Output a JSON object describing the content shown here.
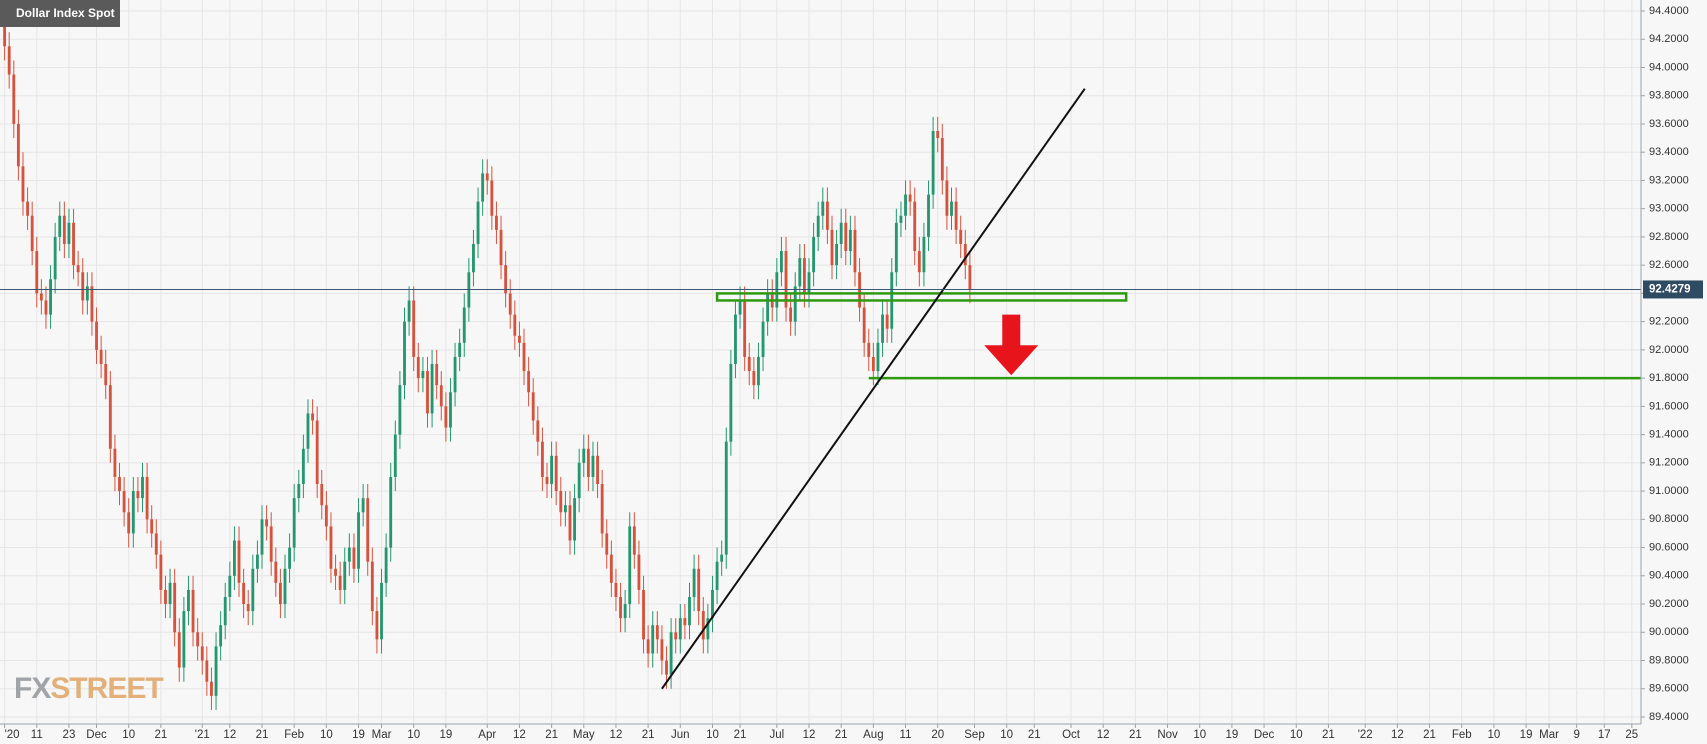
{
  "chart_data": {
    "type": "candlestick",
    "title": "Dollar Index Spot",
    "watermark": [
      "FX",
      "STREET"
    ],
    "up_color": "#26966f",
    "down_color": "#d5533e",
    "grid": true,
    "xlim": [
      -1,
      356
    ],
    "ylim": [
      89.4,
      94.4
    ],
    "yticks": [
      {
        "value": 89.4,
        "label": "89.4000"
      },
      {
        "value": 89.6,
        "label": "89.6000"
      },
      {
        "value": 89.8,
        "label": "89.8000"
      },
      {
        "value": 90.0,
        "label": "90.0000"
      },
      {
        "value": 90.2,
        "label": "90.2000"
      },
      {
        "value": 90.4,
        "label": "90.4000"
      },
      {
        "value": 90.6,
        "label": "90.6000"
      },
      {
        "value": 90.8,
        "label": "90.8000"
      },
      {
        "value": 91.0,
        "label": "91.0000"
      },
      {
        "value": 91.2,
        "label": "91.2000"
      },
      {
        "value": 91.4,
        "label": "91.4000"
      },
      {
        "value": 91.6,
        "label": "91.6000"
      },
      {
        "value": 91.8,
        "label": "91.8000"
      },
      {
        "value": 92.0,
        "label": "92.0000"
      },
      {
        "value": 92.2,
        "label": "92.2000"
      },
      {
        "value": 92.4,
        "label": "92.4000"
      },
      {
        "value": 92.6,
        "label": "92.6000"
      },
      {
        "value": 92.8,
        "label": "92.8000"
      },
      {
        "value": 93.0,
        "label": "93.0000"
      },
      {
        "value": 93.2,
        "label": "93.2000"
      },
      {
        "value": 93.4,
        "label": "93.4000"
      },
      {
        "value": 93.6,
        "label": "93.6000"
      },
      {
        "value": 93.8,
        "label": "93.8000"
      },
      {
        "value": 94.0,
        "label": "94.0000"
      },
      {
        "value": 94.2,
        "label": "94.2000"
      },
      {
        "value": 94.4,
        "label": "94.4000"
      }
    ],
    "xticks": [
      {
        "value": 0,
        "label": "'20"
      },
      {
        "value": 7,
        "label": "11"
      },
      {
        "value": 14,
        "label": "23"
      },
      {
        "value": 20,
        "label": "Dec"
      },
      {
        "value": 27,
        "label": "10"
      },
      {
        "value": 34,
        "label": "21"
      },
      {
        "value": 43,
        "label": "'21"
      },
      {
        "value": 49,
        "label": "12"
      },
      {
        "value": 56,
        "label": "21"
      },
      {
        "value": 63,
        "label": "Feb"
      },
      {
        "value": 70,
        "label": "10"
      },
      {
        "value": 77,
        "label": "19"
      },
      {
        "value": 82,
        "label": "Mar"
      },
      {
        "value": 89,
        "label": "10"
      },
      {
        "value": 96,
        "label": "19"
      },
      {
        "value": 105,
        "label": "Apr"
      },
      {
        "value": 112,
        "label": "12"
      },
      {
        "value": 119,
        "label": "21"
      },
      {
        "value": 126,
        "label": "May"
      },
      {
        "value": 133,
        "label": "12"
      },
      {
        "value": 140,
        "label": "21"
      },
      {
        "value": 147,
        "label": "Jun"
      },
      {
        "value": 154,
        "label": "10"
      },
      {
        "value": 160,
        "label": "21"
      },
      {
        "value": 168,
        "label": "Jul"
      },
      {
        "value": 175,
        "label": "12"
      },
      {
        "value": 182,
        "label": "21"
      },
      {
        "value": 189,
        "label": "Aug"
      },
      {
        "value": 196,
        "label": "11"
      },
      {
        "value": 203,
        "label": "20"
      },
      {
        "value": 211,
        "label": "Sep"
      },
      {
        "value": 218,
        "label": "10"
      },
      {
        "value": 224,
        "label": "21"
      },
      {
        "value": 232,
        "label": "Oct"
      },
      {
        "value": 239,
        "label": "12"
      },
      {
        "value": 246,
        "label": "21"
      },
      {
        "value": 253,
        "label": "Nov"
      },
      {
        "value": 260,
        "label": "10"
      },
      {
        "value": 267,
        "label": "19"
      },
      {
        "value": 274,
        "label": "Dec"
      },
      {
        "value": 281,
        "label": "10"
      },
      {
        "value": 288,
        "label": "21"
      },
      {
        "value": 296,
        "label": "'22"
      },
      {
        "value": 303,
        "label": "12"
      },
      {
        "value": 310,
        "label": "21"
      },
      {
        "value": 317,
        "label": "Feb"
      },
      {
        "value": 324,
        "label": "10"
      },
      {
        "value": 331,
        "label": "19"
      },
      {
        "value": 336,
        "label": "Mar"
      },
      {
        "value": 342,
        "label": "9"
      },
      {
        "value": 348,
        "label": "17"
      },
      {
        "value": 354,
        "label": "25"
      }
    ],
    "x": [
      0,
      1,
      2,
      3,
      4,
      5,
      6,
      7,
      8,
      9,
      10,
      11,
      12,
      13,
      14,
      15,
      16,
      17,
      18,
      19,
      20,
      21,
      22,
      23,
      24,
      25,
      26,
      27,
      28,
      29,
      30,
      31,
      32,
      33,
      34,
      35,
      36,
      37,
      38,
      39,
      40,
      41,
      42,
      43,
      44,
      45,
      46,
      47,
      48,
      49,
      50,
      51,
      52,
      53,
      54,
      55,
      56,
      57,
      58,
      59,
      60,
      61,
      62,
      63,
      64,
      65,
      66,
      67,
      68,
      69,
      70,
      71,
      72,
      73,
      74,
      75,
      76,
      77,
      78,
      79,
      80,
      81,
      82,
      83,
      84,
      85,
      86,
      87,
      88,
      89,
      90,
      91,
      92,
      93,
      94,
      95,
      96,
      97,
      98,
      99,
      100,
      101,
      102,
      103,
      104,
      105,
      106,
      107,
      108,
      109,
      110,
      111,
      112,
      113,
      114,
      115,
      116,
      117,
      118,
      119,
      120,
      121,
      122,
      123,
      124,
      125,
      126,
      127,
      128,
      129,
      130,
      131,
      132,
      133,
      134,
      135,
      136,
      137,
      138,
      139,
      140,
      141,
      142,
      143,
      144,
      145,
      146,
      147,
      148,
      149,
      150,
      151,
      152,
      153,
      154,
      155,
      156,
      157,
      158,
      159,
      160,
      161,
      162,
      163,
      164,
      165,
      166,
      167,
      168,
      169,
      170,
      171,
      172,
      173,
      174,
      175,
      176,
      177,
      178,
      179,
      180,
      181,
      182,
      183,
      184,
      185,
      186,
      187,
      188,
      189,
      190,
      191,
      192,
      193,
      194,
      195,
      196,
      197,
      198,
      199,
      200,
      201,
      202,
      203,
      204,
      205,
      206,
      207,
      208,
      209,
      210
    ],
    "open": [
      94.3,
      94.15,
      93.95,
      93.6,
      93.3,
      93.05,
      92.95,
      92.7,
      92.4,
      92.35,
      92.25,
      92.5,
      92.8,
      92.95,
      92.75,
      92.9,
      92.6,
      92.55,
      92.35,
      92.45,
      92.2,
      92.0,
      91.9,
      91.75,
      91.3,
      91.1,
      91.0,
      90.85,
      90.7,
      91.0,
      90.95,
      91.1,
      90.8,
      90.7,
      90.55,
      90.3,
      90.2,
      90.35,
      90.0,
      89.75,
      90.15,
      90.3,
      90.0,
      89.9,
      89.8,
      89.65,
      89.55,
      89.9,
      90.05,
      90.25,
      90.4,
      90.65,
      90.35,
      90.2,
      90.15,
      90.45,
      90.55,
      90.8,
      90.75,
      90.5,
      90.35,
      90.2,
      90.45,
      90.6,
      90.95,
      91.05,
      91.3,
      91.55,
      91.5,
      91.05,
      90.9,
      90.75,
      90.45,
      90.4,
      90.3,
      90.5,
      90.6,
      90.45,
      90.85,
      90.95,
      90.5,
      90.15,
      89.95,
      90.35,
      90.6,
      91.1,
      91.4,
      91.75,
      92.2,
      92.35,
      91.95,
      91.8,
      91.85,
      91.55,
      91.9,
      91.75,
      91.6,
      91.45,
      91.7,
      91.95,
      92.05,
      92.3,
      92.55,
      92.75,
      93.05,
      93.25,
      93.2,
      92.95,
      92.85,
      92.6,
      92.4,
      92.25,
      92.1,
      92.05,
      91.85,
      91.7,
      91.5,
      91.35,
      91.1,
      91.05,
      91.25,
      91.0,
      90.85,
      90.9,
      90.65,
      90.95,
      91.2,
      91.3,
      91.1,
      91.25,
      91.05,
      90.7,
      90.55,
      90.35,
      90.25,
      90.1,
      90.2,
      90.75,
      90.55,
      90.3,
      89.95,
      89.85,
      90.05,
      89.95,
      89.8,
      89.7,
      90.0,
      89.95,
      90.1,
      90.05,
      90.25,
      90.45,
      90.15,
      89.95,
      90.1,
      90.3,
      90.5,
      90.55,
      91.35,
      91.9,
      92.25,
      92.35,
      91.95,
      91.85,
      91.75,
      91.95,
      92.2,
      92.4,
      92.3,
      92.55,
      92.7,
      92.3,
      92.2,
      92.45,
      92.65,
      92.4,
      92.55,
      92.8,
      92.95,
      93.05,
      92.85,
      92.6,
      92.75,
      92.9,
      92.7,
      92.85,
      92.55,
      92.3,
      92.05,
      91.95,
      91.85,
      92.05,
      92.25,
      92.15,
      92.55,
      92.9,
      92.95,
      93.1,
      93.05,
      92.7,
      92.55,
      92.8,
      93.1,
      93.55,
      93.5,
      93.2,
      92.95,
      93.05,
      92.85,
      92.75,
      92.6
    ],
    "high": [
      94.4,
      94.25,
      94.05,
      93.7,
      93.4,
      93.15,
      93.05,
      92.8,
      92.5,
      92.45,
      92.6,
      92.9,
      93.05,
      93.05,
      93.0,
      93.0,
      92.7,
      92.65,
      92.55,
      92.55,
      92.3,
      92.1,
      92.0,
      91.85,
      91.4,
      91.2,
      91.1,
      90.95,
      91.1,
      91.1,
      91.2,
      91.2,
      90.9,
      90.8,
      90.65,
      90.4,
      90.45,
      90.45,
      90.1,
      90.25,
      90.4,
      90.4,
      90.1,
      90.0,
      89.9,
      89.75,
      90.0,
      90.15,
      90.35,
      90.5,
      90.75,
      90.75,
      90.45,
      90.3,
      90.55,
      90.65,
      90.9,
      90.9,
      90.85,
      90.6,
      90.45,
      90.55,
      90.7,
      91.05,
      91.15,
      91.4,
      91.65,
      91.65,
      91.6,
      91.15,
      91.0,
      90.85,
      90.55,
      90.5,
      90.6,
      90.7,
      90.7,
      90.95,
      91.05,
      91.05,
      90.6,
      90.25,
      90.45,
      90.7,
      91.2,
      91.5,
      91.85,
      92.3,
      92.45,
      92.45,
      92.05,
      91.95,
      91.95,
      92.0,
      92.0,
      91.85,
      91.7,
      91.8,
      92.05,
      92.15,
      92.4,
      92.65,
      92.85,
      93.15,
      93.35,
      93.35,
      93.3,
      93.05,
      92.95,
      92.7,
      92.5,
      92.35,
      92.2,
      92.15,
      91.95,
      91.8,
      91.6,
      91.45,
      91.2,
      91.35,
      91.35,
      91.1,
      91.0,
      91.0,
      91.05,
      91.3,
      91.4,
      91.4,
      91.35,
      91.35,
      91.15,
      90.8,
      90.65,
      90.45,
      90.35,
      90.3,
      90.85,
      90.85,
      90.65,
      90.4,
      90.05,
      90.15,
      90.15,
      90.05,
      89.9,
      90.1,
      90.1,
      90.2,
      90.2,
      90.35,
      90.55,
      90.55,
      90.25,
      90.2,
      90.4,
      90.6,
      90.65,
      91.45,
      92.0,
      92.35,
      92.45,
      92.45,
      92.05,
      91.95,
      92.05,
      92.3,
      92.5,
      92.5,
      92.65,
      92.8,
      92.8,
      92.4,
      92.55,
      92.75,
      92.75,
      92.65,
      92.9,
      93.05,
      93.15,
      93.15,
      92.95,
      92.85,
      93.0,
      93.0,
      92.95,
      92.95,
      92.65,
      92.4,
      92.15,
      92.05,
      92.15,
      92.35,
      92.35,
      92.65,
      93.0,
      93.05,
      93.2,
      93.2,
      93.15,
      92.8,
      92.9,
      93.2,
      93.65,
      93.65,
      93.6,
      93.3,
      93.15,
      93.15,
      92.95,
      92.85,
      92.7
    ],
    "low": [
      94.05,
      93.85,
      93.5,
      93.2,
      92.95,
      92.85,
      92.6,
      92.3,
      92.25,
      92.15,
      92.15,
      92.4,
      92.7,
      92.65,
      92.65,
      92.5,
      92.45,
      92.25,
      92.25,
      92.1,
      91.9,
      91.8,
      91.65,
      91.2,
      91.0,
      90.9,
      90.75,
      90.6,
      90.6,
      90.85,
      90.85,
      90.7,
      90.6,
      90.45,
      90.2,
      90.1,
      90.1,
      89.9,
      89.65,
      89.65,
      90.05,
      89.9,
      89.8,
      89.7,
      89.55,
      89.45,
      89.45,
      89.8,
      89.95,
      90.15,
      90.3,
      90.25,
      90.1,
      90.05,
      90.05,
      90.35,
      90.45,
      90.65,
      90.4,
      90.25,
      90.1,
      90.1,
      90.35,
      90.5,
      90.85,
      90.95,
      91.2,
      91.4,
      90.95,
      90.8,
      90.65,
      90.35,
      90.3,
      90.2,
      90.2,
      90.4,
      90.35,
      90.35,
      90.75,
      90.4,
      90.05,
      89.85,
      89.85,
      90.25,
      90.5,
      91.0,
      91.3,
      91.65,
      92.1,
      91.85,
      91.7,
      91.7,
      91.45,
      91.45,
      91.65,
      91.5,
      91.35,
      91.35,
      91.6,
      91.85,
      91.95,
      92.2,
      92.45,
      92.65,
      92.95,
      93.1,
      92.85,
      92.75,
      92.5,
      92.3,
      92.15,
      92.0,
      91.95,
      91.75,
      91.6,
      91.4,
      91.25,
      91.0,
      90.95,
      90.95,
      90.9,
      90.75,
      90.75,
      90.55,
      90.55,
      90.85,
      91.1,
      91.0,
      91.0,
      90.95,
      90.6,
      90.45,
      90.25,
      90.15,
      90.0,
      90.0,
      90.1,
      90.45,
      90.2,
      89.85,
      89.75,
      89.75,
      89.85,
      89.7,
      89.6,
      89.6,
      89.85,
      89.85,
      89.95,
      89.95,
      90.15,
      90.05,
      89.85,
      89.85,
      90.0,
      90.2,
      90.4,
      90.45,
      91.25,
      91.8,
      92.15,
      91.85,
      91.75,
      91.65,
      91.65,
      91.85,
      92.1,
      92.2,
      92.2,
      92.45,
      92.2,
      92.1,
      92.1,
      92.35,
      92.3,
      92.3,
      92.45,
      92.7,
      92.85,
      92.75,
      92.5,
      92.5,
      92.65,
      92.6,
      92.6,
      92.45,
      92.2,
      91.95,
      91.85,
      91.75,
      91.75,
      91.95,
      92.05,
      92.05,
      92.45,
      92.8,
      92.85,
      92.95,
      92.6,
      92.45,
      92.45,
      92.7,
      93.0,
      93.4,
      93.1,
      92.85,
      92.85,
      92.75,
      92.65,
      92.5,
      92.33
    ],
    "close": [
      94.15,
      93.95,
      93.6,
      93.3,
      93.05,
      92.95,
      92.7,
      92.4,
      92.35,
      92.25,
      92.5,
      92.8,
      92.95,
      92.75,
      92.9,
      92.6,
      92.55,
      92.35,
      92.45,
      92.2,
      92.0,
      91.9,
      91.75,
      91.3,
      91.1,
      91.0,
      90.85,
      90.7,
      91.0,
      90.95,
      91.1,
      90.8,
      90.7,
      90.55,
      90.3,
      90.2,
      90.35,
      90.0,
      89.75,
      90.15,
      90.3,
      90.0,
      89.9,
      89.8,
      89.65,
      89.55,
      89.9,
      90.05,
      90.25,
      90.4,
      90.65,
      90.35,
      90.2,
      90.15,
      90.45,
      90.55,
      90.8,
      90.75,
      90.5,
      90.35,
      90.2,
      90.45,
      90.6,
      90.95,
      91.05,
      91.3,
      91.55,
      91.5,
      91.05,
      90.9,
      90.75,
      90.45,
      90.4,
      90.3,
      90.5,
      90.6,
      90.45,
      90.85,
      90.95,
      90.5,
      90.15,
      89.95,
      90.35,
      90.6,
      91.1,
      91.4,
      91.75,
      92.2,
      92.35,
      91.95,
      91.8,
      91.85,
      91.55,
      91.9,
      91.75,
      91.6,
      91.45,
      91.7,
      91.95,
      92.05,
      92.3,
      92.55,
      92.75,
      93.05,
      93.25,
      93.2,
      92.95,
      92.85,
      92.6,
      92.4,
      92.25,
      92.1,
      92.05,
      91.85,
      91.7,
      91.5,
      91.35,
      91.1,
      91.05,
      91.25,
      91.0,
      90.85,
      90.9,
      90.65,
      90.95,
      91.2,
      91.3,
      91.1,
      91.25,
      91.05,
      90.7,
      90.55,
      90.35,
      90.25,
      90.1,
      90.2,
      90.75,
      90.55,
      90.3,
      89.95,
      89.85,
      90.05,
      89.95,
      89.8,
      89.7,
      90.0,
      89.95,
      90.1,
      90.05,
      90.25,
      90.45,
      90.15,
      89.95,
      90.1,
      90.3,
      90.5,
      90.55,
      91.35,
      91.9,
      92.25,
      92.35,
      91.95,
      91.85,
      91.75,
      91.95,
      92.2,
      92.4,
      92.3,
      92.55,
      92.7,
      92.3,
      92.2,
      92.45,
      92.65,
      92.4,
      92.55,
      92.8,
      92.95,
      93.05,
      92.85,
      92.6,
      92.75,
      92.9,
      92.7,
      92.85,
      92.55,
      92.3,
      92.05,
      91.95,
      91.85,
      92.05,
      92.25,
      92.15,
      92.55,
      92.9,
      92.95,
      93.1,
      93.05,
      92.7,
      92.55,
      92.8,
      93.1,
      93.55,
      93.5,
      93.2,
      92.95,
      93.05,
      92.85,
      92.75,
      92.6,
      92.43
    ],
    "last_price": 92.4279,
    "zone": {
      "x": [
        155,
        244
      ],
      "y": [
        92.35,
        92.4
      ]
    },
    "support": {
      "x": [
        188,
        356
      ],
      "y": 91.8
    },
    "trendline": {
      "x": [
        143,
        235
      ],
      "y": [
        89.6,
        93.85
      ]
    },
    "arrow": {
      "x": 219,
      "y": [
        92.25,
        91.82
      ]
    }
  }
}
